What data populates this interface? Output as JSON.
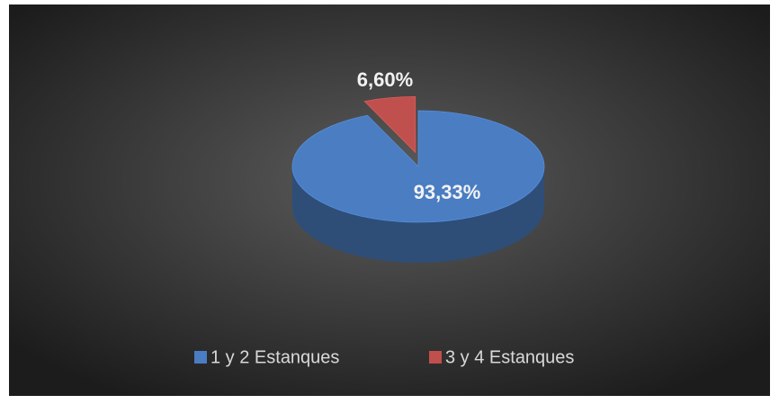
{
  "chart_data": {
    "type": "pie3d",
    "series": [
      {
        "name": "1 y 2 Estanques",
        "color": "#4a7dc2",
        "values": [
          93.33
        ],
        "value_labels": [
          "93,33%"
        ]
      },
      {
        "name": "3 y 4 Estanques",
        "color": "#c0504d",
        "values": [
          6.6
        ],
        "value_labels": [
          "6,60%"
        ]
      }
    ],
    "legend": "bottom"
  }
}
